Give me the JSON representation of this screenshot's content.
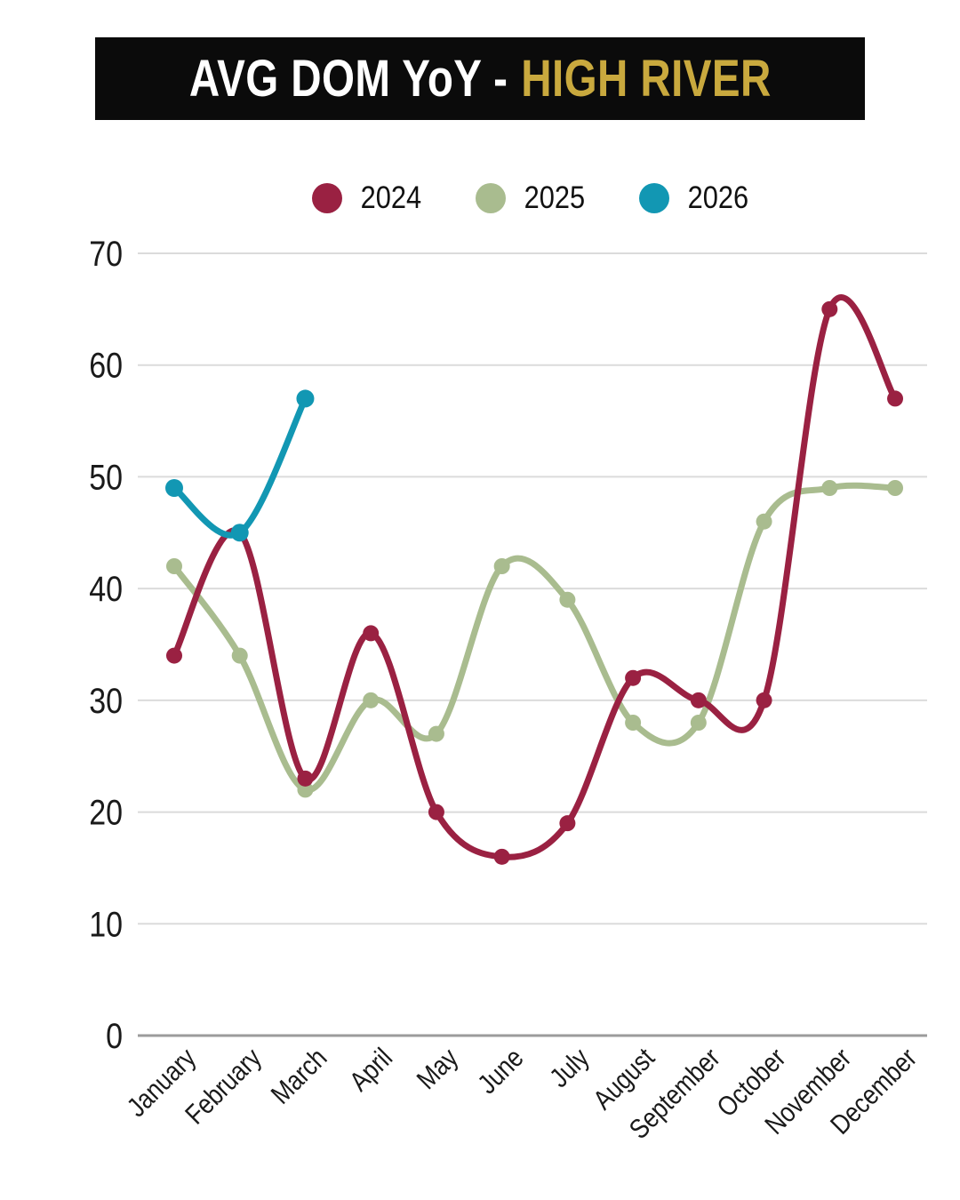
{
  "chart_data": {
    "type": "line",
    "title": "AVG DOM YoY - HIGH RIVER",
    "title_main": "AVG DOM YoY -",
    "title_highlight": "HIGH RIVER",
    "categories": [
      "January",
      "February",
      "March",
      "April",
      "May",
      "June",
      "July",
      "August",
      "September",
      "October",
      "November",
      "December"
    ],
    "series": [
      {
        "name": "2024",
        "color": "#9A2142",
        "values": [
          34,
          45,
          23,
          36,
          20,
          16,
          19,
          32,
          30,
          30,
          65,
          57
        ]
      },
      {
        "name": "2025",
        "color": "#A9BC8F",
        "values": [
          42,
          34,
          22,
          30,
          27,
          42,
          39,
          28,
          28,
          46,
          49,
          49
        ]
      },
      {
        "name": "2026",
        "color": "#1297B3",
        "values": [
          49,
          45,
          57,
          null,
          null,
          null,
          null,
          null,
          null,
          null,
          null,
          null
        ]
      }
    ],
    "ylim": [
      0,
      70
    ],
    "ytick_step": 10,
    "yticks": [
      0,
      10,
      20,
      30,
      40,
      50,
      60,
      70
    ],
    "grid": true,
    "legend_position": "top",
    "colors": {
      "background": "#FFFFFF",
      "banner_bg": "#0B0B0B",
      "title_text": "#FFFFFF",
      "title_highlight": "#C9A93E",
      "grid_line": "#DBDBDB",
      "axis_line": "#9B9B9B",
      "label_text": "#1A1A1A"
    }
  }
}
